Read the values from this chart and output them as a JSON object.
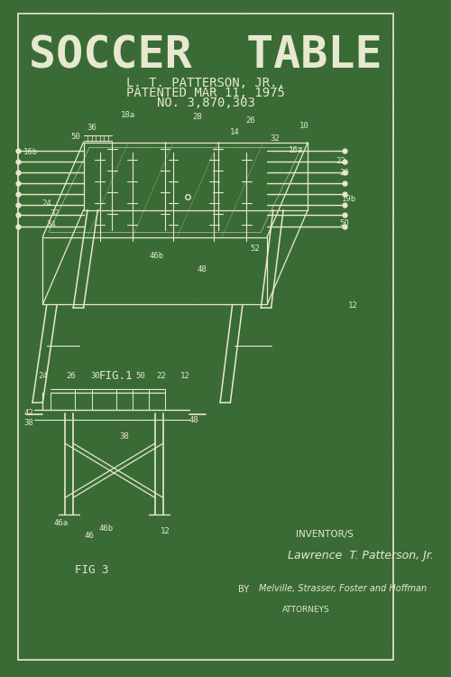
{
  "bg_color": "#3a6b35",
  "border_color": "#e8e8d0",
  "line_color": "#e8e8d0",
  "title": "SOCCER  TABLE",
  "subtitle1": "L. T. PATTERSON, JR.,",
  "subtitle2": "PATENTED MAR 11, 1975",
  "subtitle3": "NO. 3,870,303",
  "fig1_label": "FIG.1",
  "fig3_label": "FIG 3",
  "inventor_label": "INVENTOR/S",
  "inventor_name": "Lawrence  T. Patterson, Jr.",
  "by_label": "BY",
  "attorney": "Melville, Strasser, Foster and Hoffman",
  "attorneys_label": "ATTORNEYS",
  "title_fontsize": 36,
  "subtitle_fontsize": 10,
  "label_fontsize": 7,
  "fig_width": 5.0,
  "fig_height": 7.5,
  "dpi": 100
}
